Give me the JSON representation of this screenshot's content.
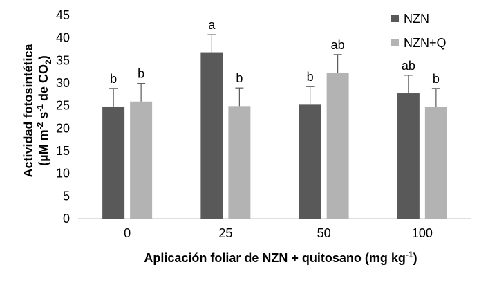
{
  "chart_data": {
    "type": "bar",
    "xlabel": "Aplicación foliar de NZN + quitosano (mg kg",
    "xlabel_sup": "-1",
    "xlabel_end": ")",
    "ylabel_line1": "Actividad fotosintética",
    "ylabel_line2_a": "(µM m",
    "ylabel_line2_sup1": "-2",
    "ylabel_line2_b": " s",
    "ylabel_line2_sup2": "-1",
    "ylabel_line2_c": " de CO",
    "ylabel_line2_sub": "2",
    "ylabel_line2_d": ")",
    "categories": [
      "0",
      "25",
      "50",
      "100"
    ],
    "ylim": [
      0,
      45
    ],
    "yticks": [
      "0",
      "5",
      "10",
      "15",
      "20",
      "25",
      "30",
      "35",
      "40",
      "45"
    ],
    "grid": false,
    "legend_position": "top-right",
    "series": [
      {
        "name": "NZN",
        "color": "#595959",
        "values": [
          24.8,
          36.8,
          25.2,
          27.7
        ],
        "errors": [
          4.0,
          3.9,
          4.0,
          4.0
        ],
        "labels": [
          "b",
          "a",
          "b",
          "ab"
        ]
      },
      {
        "name": "NZN+Q",
        "color": "#b3b3b3",
        "values": [
          25.9,
          24.9,
          32.3,
          24.8
        ],
        "errors": [
          4.0,
          4.0,
          4.0,
          4.0
        ],
        "labels": [
          "b",
          "b",
          "ab",
          "b"
        ]
      }
    ]
  }
}
